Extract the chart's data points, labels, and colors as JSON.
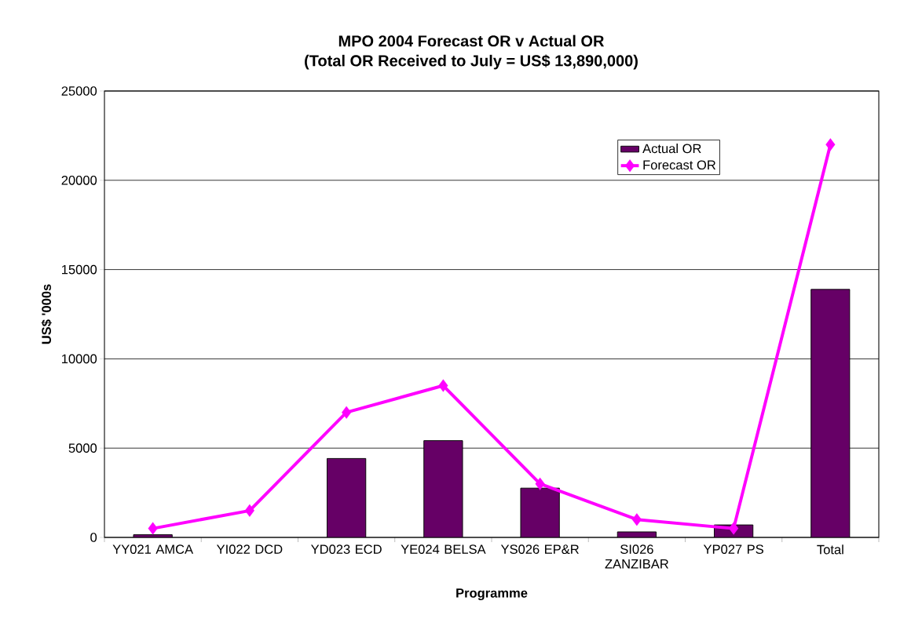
{
  "chart_data": {
    "type": "bar",
    "title": "MPO 2004 Forecast OR v Actual OR",
    "subtitle": "(Total OR Received to July = US$ 13,890,000)",
    "xlabel": "Programme",
    "ylabel": "US$ '000s",
    "categories": [
      "YY021 AMCA",
      "YI022 DCD",
      "YD023 ECD",
      "YE024 BELSA",
      "YS026 EP&R",
      "SI026 ZANZIBAR",
      "YP027 PS",
      "Total"
    ],
    "series": [
      {
        "name": "Actual OR",
        "color": "#660066",
        "values": [
          150,
          null,
          4420,
          5420,
          2760,
          310,
          700,
          13890
        ]
      },
      {
        "name": "Forecast OR",
        "type": "line",
        "color": "#ff00ff",
        "values": [
          500,
          1500,
          7000,
          8500,
          3000,
          1000,
          500,
          22000
        ]
      }
    ],
    "ylim": [
      0,
      25000
    ],
    "yticks": [
      0,
      5000,
      10000,
      15000,
      20000,
      25000
    ],
    "grid": "y",
    "legend": "top right",
    "marker": "diamond"
  }
}
